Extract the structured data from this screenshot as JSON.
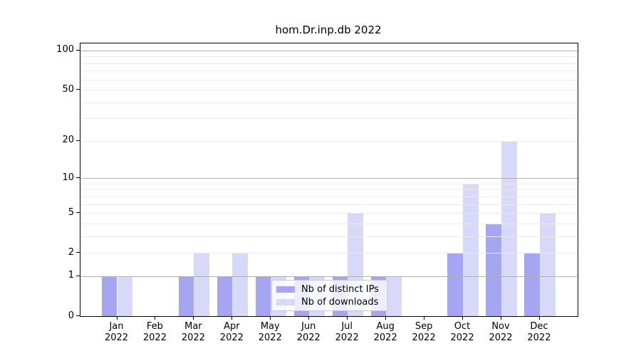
{
  "title": "hom.Dr.inp.db 2022",
  "chart_data": {
    "type": "bar",
    "title": "hom.Dr.inp.db 2022",
    "categories": [
      "Jan",
      "Feb",
      "Mar",
      "Apr",
      "May",
      "Jun",
      "Jul",
      "Aug",
      "Sep",
      "Oct",
      "Nov",
      "Dec"
    ],
    "category_year": "2022",
    "series": [
      {
        "name": "Nb of distinct IPs",
        "color": "#a5a5f2",
        "values": [
          1,
          0,
          1,
          1,
          1,
          1,
          1,
          1,
          0,
          2,
          4,
          2
        ]
      },
      {
        "name": "Nb of downloads",
        "color": "#d8d8f8",
        "values": [
          1,
          0,
          2,
          2,
          1,
          1,
          5,
          1,
          0,
          9,
          20,
          5
        ]
      }
    ],
    "xlabel": "",
    "ylabel": "",
    "yscale": "log10(value+1)",
    "ylim": [
      0,
      113
    ],
    "yticks": [
      0,
      1,
      2,
      5,
      10,
      20,
      50,
      100
    ],
    "grid_major_values": [
      1,
      10,
      100
    ],
    "grid_minor_values": [
      2,
      3,
      4,
      5,
      6,
      7,
      8,
      9,
      20,
      30,
      40,
      50,
      60,
      70,
      80,
      90
    ],
    "grid": "on",
    "legend_position": "lower center"
  },
  "legend": {
    "entries": [
      {
        "label": "Nb of distinct IPs",
        "color": "#a5a5f2"
      },
      {
        "label": "Nb of downloads",
        "color": "#d8d8f8"
      }
    ]
  },
  "colors": {
    "background": "#ffffff",
    "spine": "#000000",
    "grid_major": "#b0b0b0",
    "grid_minor": "#ebebeb",
    "text": "#000000",
    "bar_distinct_ips": "#a5a5f2",
    "bar_downloads": "#d8d8f8"
  }
}
